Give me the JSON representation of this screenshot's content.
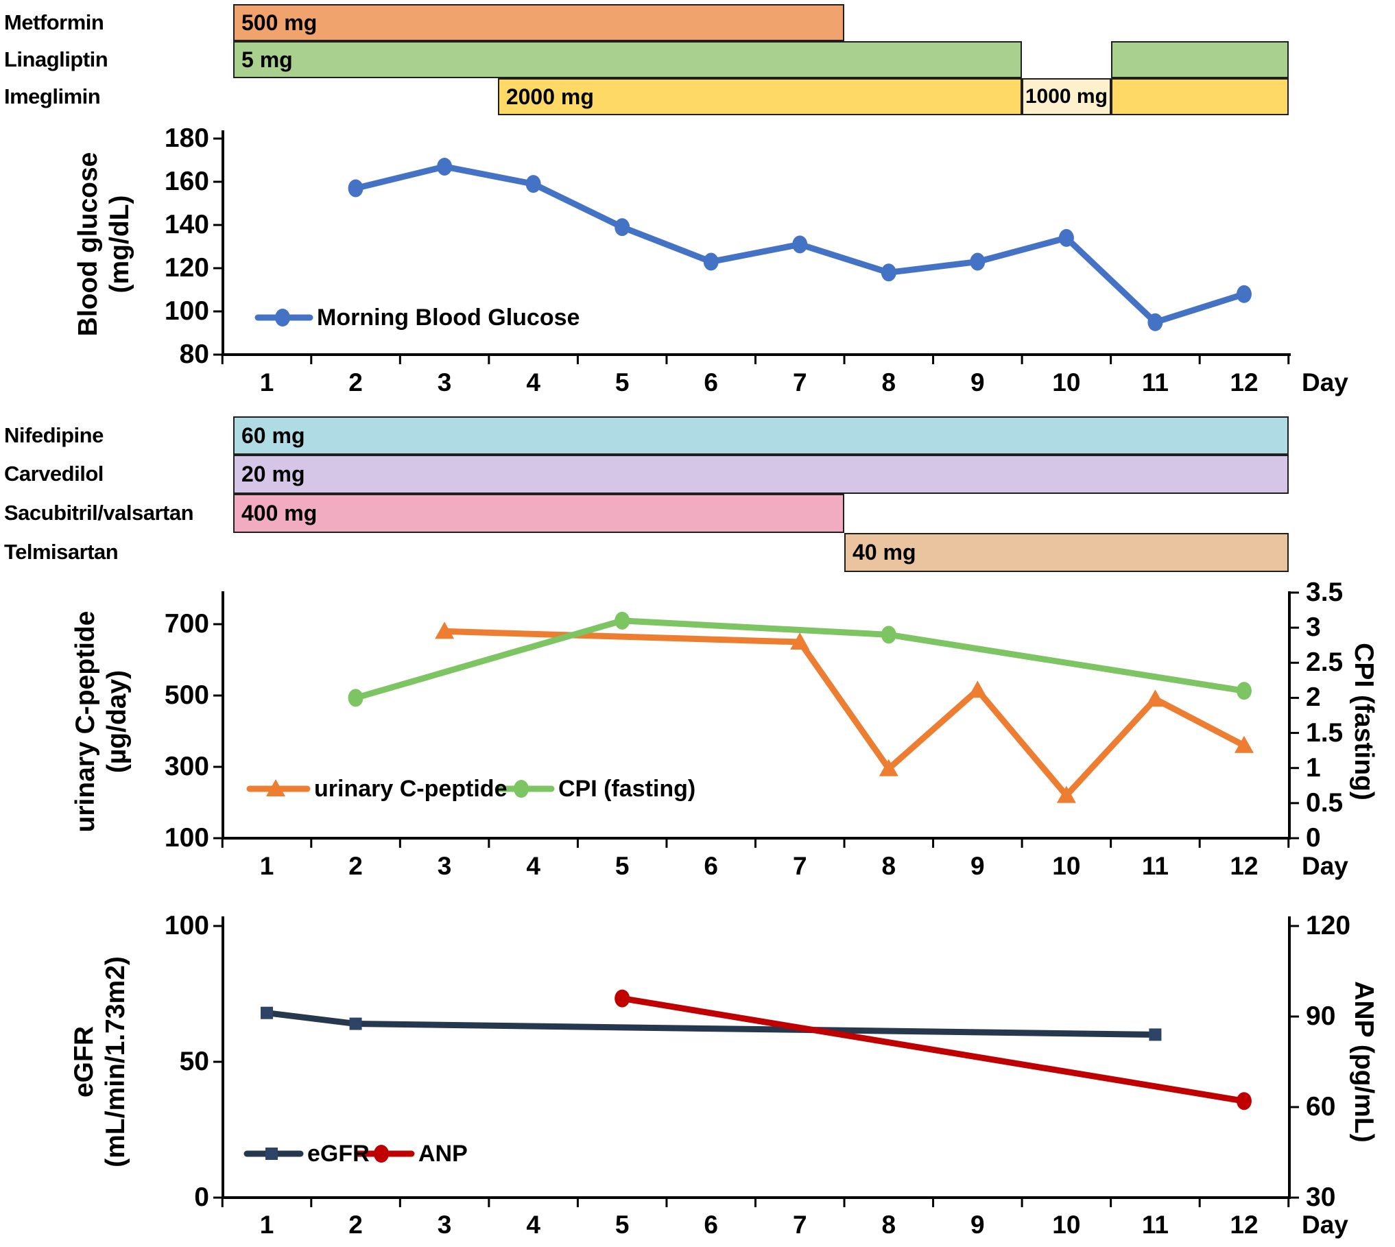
{
  "figure": {
    "background": "#ffffff",
    "day_axis_word": "Day"
  },
  "medication_groups": [
    {
      "name": "diabetes-medications",
      "rows": [
        {
          "label": "Metformin",
          "segments": [
            {
              "dose": "500 mg",
              "start_day": 0.5,
              "end_day": 7.5,
              "color": "#F1A36E",
              "align": "left"
            }
          ]
        },
        {
          "label": "Linagliptin",
          "segments": [
            {
              "dose": "5 mg",
              "start_day": 0.5,
              "end_day": 9.5,
              "color": "#A9D08E",
              "align": "left"
            },
            {
              "dose": "",
              "start_day": 10.5,
              "end_day": 12.5,
              "color": "#A9D08E",
              "align": "left"
            }
          ]
        },
        {
          "label": "Imeglimin",
          "segments": [
            {
              "dose": "2000 mg",
              "start_day": 3.6,
              "end_day": 9.5,
              "color": "#FFD965",
              "align": "left"
            },
            {
              "dose": "1000 mg",
              "start_day": 9.5,
              "end_day": 10.5,
              "color": "#FCF0CD",
              "align": "center"
            },
            {
              "dose": "",
              "start_day": 10.5,
              "end_day": 12.5,
              "color": "#FFD965",
              "align": "left"
            }
          ]
        }
      ]
    },
    {
      "name": "cardiovascular-medications",
      "rows": [
        {
          "label": "Nifedipine",
          "segments": [
            {
              "dose": "60 mg",
              "start_day": 0.5,
              "end_day": 12.5,
              "color": "#AFDCE4",
              "align": "left"
            }
          ]
        },
        {
          "label": "Carvedilol",
          "segments": [
            {
              "dose": "20 mg",
              "start_day": 0.5,
              "end_day": 12.5,
              "color": "#D5C6E8",
              "align": "left"
            }
          ]
        },
        {
          "label": "Sacubitril/valsartan",
          "segments": [
            {
              "dose": "400 mg",
              "start_day": 0.5,
              "end_day": 7.5,
              "color": "#F1ACC1",
              "align": "left"
            }
          ]
        },
        {
          "label": "Telmisartan",
          "segments": [
            {
              "dose": "40 mg",
              "start_day": 7.5,
              "end_day": 12.5,
              "color": "#EAC49E",
              "align": "left"
            }
          ]
        }
      ]
    }
  ],
  "chart_data": [
    {
      "type": "line",
      "name": "blood-glucose-chart",
      "x": {
        "title": "Day",
        "labels": [
          1,
          2,
          3,
          4,
          5,
          6,
          7,
          8,
          9,
          10,
          11,
          12
        ]
      },
      "y_left": {
        "title_lines": [
          "Blood glucose",
          "(mg/dL)"
        ],
        "ticks": [
          180,
          160,
          140,
          120,
          100,
          80
        ],
        "min": 80,
        "max": 180
      },
      "y_right": null,
      "grid": false,
      "legend_position": "inside-lower-left",
      "legend": [
        {
          "label": "Morning Blood Glucose"
        }
      ],
      "series": [
        {
          "id": "morning-blood-glucose",
          "label": "Morning Blood Glucose",
          "axis": "left",
          "color": "#4472C4",
          "marker": "circle",
          "points": [
            [
              2,
              157
            ],
            [
              3,
              167
            ],
            [
              4,
              159
            ],
            [
              5,
              139
            ],
            [
              6,
              123
            ],
            [
              7,
              131
            ],
            [
              8,
              118
            ],
            [
              9,
              123
            ],
            [
              10,
              134
            ],
            [
              11,
              95
            ],
            [
              12,
              108
            ]
          ]
        }
      ]
    },
    {
      "type": "line",
      "name": "c-peptide-cpi-chart",
      "x": {
        "title": "Day",
        "labels": [
          1,
          2,
          3,
          4,
          5,
          6,
          7,
          8,
          9,
          10,
          11,
          12
        ]
      },
      "y_left": {
        "title_lines": [
          "urinary C-peptide",
          "(µg/day)"
        ],
        "ticks": [
          700,
          500,
          300,
          100
        ],
        "min": 100,
        "max": 800
      },
      "y_right": {
        "title_lines": [
          "CPI (fasting)"
        ],
        "ticks": [
          3.5,
          3,
          2.5,
          2,
          1.5,
          1,
          0.5,
          0
        ],
        "min": 0,
        "max": 3.5
      },
      "grid": false,
      "legend_position": "inside-lower-left",
      "legend": [
        {
          "label": "urinary C-peptide"
        },
        {
          "label": "CPI (fasting)"
        }
      ],
      "series": [
        {
          "id": "urinary-c-peptide",
          "label": "urinary C-peptide",
          "axis": "left",
          "color": "#ED7D31",
          "marker": "triangle",
          "points": [
            [
              3,
              680
            ],
            [
              7,
              650
            ],
            [
              8,
              295
            ],
            [
              9,
              515
            ],
            [
              10,
              220
            ],
            [
              11,
              490
            ],
            [
              12,
              360
            ]
          ]
        },
        {
          "id": "cpi-fasting",
          "label": "CPI (fasting)",
          "axis": "right",
          "color": "#7DC462",
          "marker": "circle",
          "points": [
            [
              2,
              2.0
            ],
            [
              5,
              3.1
            ],
            [
              8,
              2.9
            ],
            [
              12,
              2.1
            ]
          ]
        }
      ]
    },
    {
      "type": "line",
      "name": "egfr-anp-chart",
      "x": {
        "title": "Day",
        "labels": [
          1,
          2,
          3,
          4,
          5,
          6,
          7,
          8,
          9,
          10,
          11,
          12
        ]
      },
      "y_left": {
        "title_lines": [
          "eGFR",
          "(mL/min/1.73m2)"
        ],
        "ticks": [
          100,
          50,
          0
        ],
        "min": 0,
        "max": 100
      },
      "y_right": {
        "title_lines": [
          "ANP (pg/mL)"
        ],
        "ticks": [
          120,
          90,
          60,
          30
        ],
        "min": 30,
        "max": 120
      },
      "grid": false,
      "legend_position": "inside-lower-left",
      "legend": [
        {
          "label": "eGFR"
        },
        {
          "label": "ANP"
        }
      ],
      "series": [
        {
          "id": "egfr",
          "label": "eGFR",
          "axis": "left",
          "color": "#26384E",
          "marker": "square",
          "marker_color": "#2E4466",
          "points": [
            [
              1,
              68
            ],
            [
              2,
              64
            ],
            [
              11,
              60
            ]
          ]
        },
        {
          "id": "anp",
          "label": "ANP",
          "axis": "right",
          "color": "#C00000",
          "marker": "circle",
          "points": [
            [
              5,
              96
            ],
            [
              12,
              62
            ]
          ]
        }
      ]
    }
  ]
}
